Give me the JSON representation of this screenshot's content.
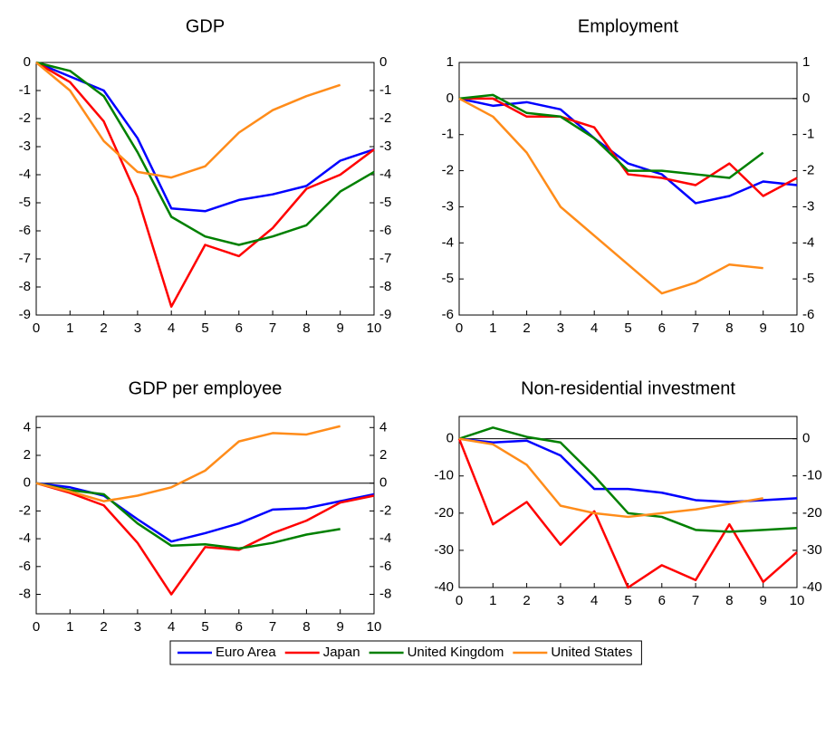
{
  "chart_data": [
    {
      "type": "line",
      "title": "GDP",
      "x": [
        0,
        1,
        2,
        3,
        4,
        5,
        6,
        7,
        8,
        9,
        10
      ],
      "xlim": [
        0,
        10
      ],
      "xticks": [
        0,
        1,
        2,
        3,
        4,
        5,
        6,
        7,
        8,
        9,
        10
      ],
      "ylim": [
        -9,
        0
      ],
      "yticks": [
        0,
        -1,
        -2,
        -3,
        -4,
        -5,
        -6,
        -7,
        -8,
        -9
      ],
      "series": [
        {
          "color": "#0000ff",
          "values": [
            0,
            -0.5,
            -1.0,
            -2.7,
            -5.2,
            -5.3,
            -4.9,
            -4.7,
            -4.4,
            -3.5,
            -3.1
          ]
        },
        {
          "color": "#ff0000",
          "values": [
            0,
            -0.7,
            -2.1,
            -4.8,
            -8.7,
            -6.5,
            -6.9,
            -5.9,
            -4.5,
            -4.0,
            -3.1
          ]
        },
        {
          "color": "#008000",
          "values": [
            0,
            -0.3,
            -1.2,
            -3.2,
            -5.5,
            -6.2,
            -6.5,
            -6.2,
            -5.8,
            -4.6,
            -3.9
          ]
        },
        {
          "color": "#ff8c1a",
          "values": [
            0,
            -1.0,
            -2.8,
            -3.9,
            -4.1,
            -3.7,
            -2.5,
            -1.7,
            -1.2,
            -0.8,
            null
          ]
        }
      ]
    },
    {
      "type": "line",
      "title": "Employment",
      "x": [
        0,
        1,
        2,
        3,
        4,
        5,
        6,
        7,
        8,
        9,
        10
      ],
      "xlim": [
        0,
        10
      ],
      "xticks": [
        0,
        1,
        2,
        3,
        4,
        5,
        6,
        7,
        8,
        9,
        10
      ],
      "ylim": [
        -6,
        1
      ],
      "yticks": [
        1,
        0,
        -1,
        -2,
        -3,
        -4,
        -5,
        -6
      ],
      "zero_line": true,
      "series": [
        {
          "color": "#0000ff",
          "values": [
            0,
            -0.2,
            -0.1,
            -0.3,
            -1.1,
            -1.8,
            -2.1,
            -2.9,
            -2.7,
            -2.3,
            -2.4
          ]
        },
        {
          "color": "#ff0000",
          "values": [
            0,
            0,
            -0.5,
            -0.5,
            -0.8,
            -2.1,
            -2.2,
            -2.4,
            -1.8,
            -2.7,
            -2.2
          ]
        },
        {
          "color": "#008000",
          "values": [
            0,
            0.1,
            -0.4,
            -0.5,
            -1.1,
            -2.0,
            -2.0,
            -2.1,
            -2.2,
            -1.5,
            null
          ]
        },
        {
          "color": "#ff8c1a",
          "values": [
            0,
            -0.5,
            -1.5,
            -3.0,
            -3.8,
            -4.6,
            -5.4,
            -5.1,
            -4.6,
            -4.7,
            null
          ]
        }
      ]
    },
    {
      "type": "line",
      "title": "GDP per employee",
      "x": [
        0,
        1,
        2,
        3,
        4,
        5,
        6,
        7,
        8,
        9,
        10
      ],
      "xlim": [
        0,
        10
      ],
      "xticks": [
        0,
        1,
        2,
        3,
        4,
        5,
        6,
        7,
        8,
        9,
        10
      ],
      "ylim": [
        -9.4,
        4.8
      ],
      "yticks": [
        4,
        2,
        0,
        -2,
        -4,
        -6,
        -8
      ],
      "zero_line": true,
      "series": [
        {
          "color": "#0000ff",
          "values": [
            0,
            -0.3,
            -0.9,
            -2.6,
            -4.2,
            -3.6,
            -2.9,
            -1.9,
            -1.8,
            -1.3,
            -0.8
          ]
        },
        {
          "color": "#ff0000",
          "values": [
            0,
            -0.7,
            -1.6,
            -4.3,
            -8.0,
            -4.6,
            -4.8,
            -3.6,
            -2.7,
            -1.4,
            -0.9
          ]
        },
        {
          "color": "#008000",
          "values": [
            0,
            -0.5,
            -0.8,
            -2.9,
            -4.5,
            -4.4,
            -4.7,
            -4.3,
            -3.7,
            -3.3,
            null
          ]
        },
        {
          "color": "#ff8c1a",
          "values": [
            0,
            -0.6,
            -1.3,
            -0.9,
            -0.3,
            0.9,
            3.0,
            3.6,
            3.5,
            4.1,
            null
          ]
        }
      ]
    },
    {
      "type": "line",
      "title": "Non-residential investment",
      "x": [
        0,
        1,
        2,
        3,
        4,
        5,
        6,
        7,
        8,
        9,
        10
      ],
      "xlim": [
        0,
        10
      ],
      "xticks": [
        0,
        1,
        2,
        3,
        4,
        5,
        6,
        7,
        8,
        9,
        10
      ],
      "ylim": [
        -40,
        6
      ],
      "yticks": [
        0,
        -10,
        -20,
        -30,
        -40
      ],
      "zero_line": true,
      "series": [
        {
          "color": "#0000ff",
          "values": [
            0,
            -1,
            -0.5,
            -4.5,
            -13.5,
            -13.5,
            -14.5,
            -16.5,
            -17,
            -16.5,
            -16
          ]
        },
        {
          "color": "#ff0000",
          "values": [
            0,
            -23,
            -17,
            -28.5,
            -19.5,
            -40,
            -34,
            -38,
            -23,
            -38.5,
            -30.5
          ]
        },
        {
          "color": "#008000",
          "values": [
            0,
            3,
            0.5,
            -1,
            -10,
            -20,
            -21,
            -24.5,
            -25,
            -24.5,
            -24
          ]
        },
        {
          "color": "#ff8c1a",
          "values": [
            0,
            -1.5,
            -7,
            -18,
            -20,
            -21,
            -20,
            -19,
            -17.5,
            -16,
            null
          ]
        }
      ]
    }
  ],
  "legend": [
    {
      "name": "Euro Area",
      "color": "#0000ff"
    },
    {
      "name": "Japan",
      "color": "#ff0000"
    },
    {
      "name": "United Kingdom",
      "color": "#008000"
    },
    {
      "name": "United States",
      "color": "#ff8c1a"
    }
  ]
}
